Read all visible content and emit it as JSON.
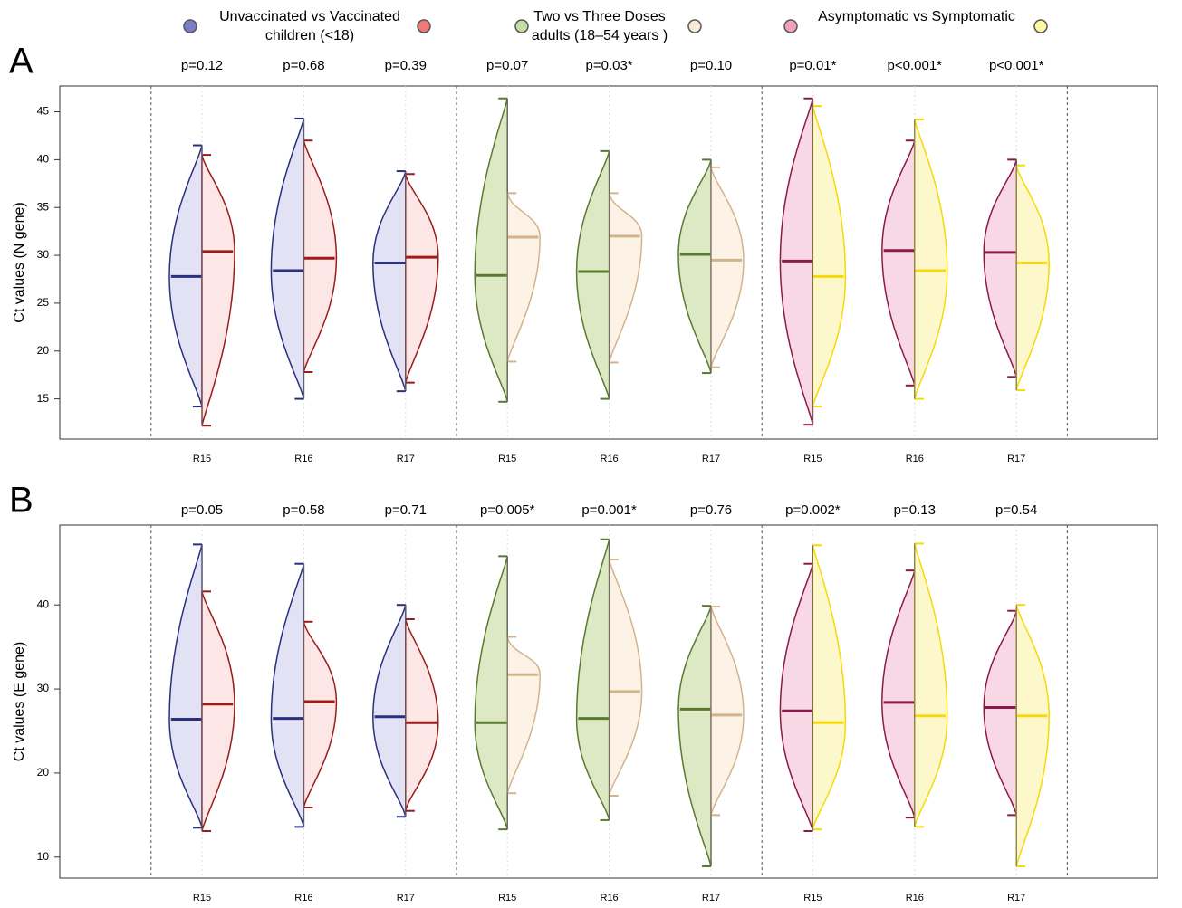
{
  "legend": {
    "items": [
      {
        "label": [
          "Unvaccinated vs Vaccinated",
          "children (<18)"
        ],
        "colors": [
          "#7b7fc8",
          "#f07878"
        ],
        "line_colors": [
          "#2b2f80",
          "#9b1b1b"
        ],
        "fill_colors": [
          "#e2e2f4",
          "#fde6e6"
        ]
      },
      {
        "label": [
          "Two vs Three Doses",
          "adults (18–54 years )"
        ],
        "colors": [
          "#c6dca0",
          "#f8e8d4"
        ],
        "line_colors": [
          "#5a7a30",
          "#d2b48c"
        ],
        "fill_colors": [
          "#dce9c4",
          "#fcf2e6"
        ]
      },
      {
        "label": [
          "Asymptomatic vs Symptomatic"
        ],
        "colors": [
          "#f2a0c0",
          "#fdf7a0"
        ],
        "line_colors": [
          "#8b1a4a",
          "#f5d90a"
        ],
        "fill_colors": [
          "#f9d8e6",
          "#fdf8cc"
        ]
      }
    ]
  },
  "chart_data": [
    {
      "type": "violin",
      "label": "A",
      "y_label": "Ct values (N gene)",
      "ylim": [
        10.8,
        47.7
      ],
      "yticks": [
        15,
        20,
        25,
        30,
        35,
        40,
        45
      ],
      "groups": [
        {
          "categories": [
            "R15",
            "R16",
            "R17"
          ],
          "p_values": [
            "p=0.12",
            "p=0.68",
            "p=0.39"
          ],
          "left": {
            "min": [
              14.2,
              15,
              15.8
            ],
            "median": [
              27.8,
              28.4,
              29.2
            ],
            "max": [
              41.5,
              44.3,
              38.8
            ]
          },
          "right": {
            "min": [
              12.2,
              17.8,
              16.7
            ],
            "median": [
              30.4,
              29.7,
              29.8
            ],
            "max": [
              40.5,
              42,
              38.5
            ]
          }
        },
        {
          "categories": [
            "R15",
            "R16",
            "R17"
          ],
          "p_values": [
            "p=0.07",
            "p=0.03*",
            "p=0.10"
          ],
          "left": {
            "min": [
              14.7,
              15,
              17.7
            ],
            "median": [
              27.9,
              28.3,
              30.1
            ],
            "max": [
              46.4,
              40.9,
              40
            ]
          },
          "right": {
            "min": [
              18.9,
              18.8,
              18.3
            ],
            "median": [
              31.9,
              32,
              29.5
            ],
            "max": [
              36.5,
              36.5,
              39.2
            ]
          }
        },
        {
          "categories": [
            "R15",
            "R16",
            "R17"
          ],
          "p_values": [
            "p=0.01*",
            "p<0.001*",
            "p<0.001*"
          ],
          "left": {
            "min": [
              12.3,
              16.4,
              17.3
            ],
            "median": [
              29.4,
              30.5,
              30.3
            ],
            "max": [
              46.4,
              42,
              40
            ]
          },
          "right": {
            "min": [
              14.2,
              15,
              15.9
            ],
            "median": [
              27.8,
              28.4,
              29.2
            ],
            "max": [
              45.6,
              44.2,
              39.4
            ]
          }
        }
      ]
    },
    {
      "type": "violin",
      "label": "B",
      "y_label": "Ct values (E gene)",
      "ylim": [
        7.5,
        49.5
      ],
      "yticks": [
        10,
        20,
        30,
        40
      ],
      "groups": [
        {
          "categories": [
            "R15",
            "R16",
            "R17"
          ],
          "p_values": [
            "p=0.05",
            "p=0.58",
            "p=0.71"
          ],
          "left": {
            "min": [
              13.5,
              13.6,
              14.8
            ],
            "median": [
              26.4,
              26.5,
              26.7
            ],
            "max": [
              47.2,
              44.9,
              40
            ]
          },
          "right": {
            "min": [
              13.1,
              15.9,
              15.5
            ],
            "median": [
              28.2,
              28.5,
              26
            ],
            "max": [
              41.6,
              38,
              38.3
            ]
          }
        },
        {
          "categories": [
            "R15",
            "R16",
            "R17"
          ],
          "p_values": [
            "p=0.005*",
            "p=0.001*",
            "p=0.76"
          ],
          "left": {
            "min": [
              13.3,
              14.4,
              8.9
            ],
            "median": [
              26,
              26.5,
              27.6
            ],
            "max": [
              45.8,
              47.8,
              39.9
            ]
          },
          "right": {
            "min": [
              17.6,
              17.3,
              15
            ],
            "median": [
              31.7,
              29.7,
              26.9
            ],
            "max": [
              36.2,
              45.4,
              39.8
            ]
          }
        },
        {
          "categories": [
            "R15",
            "R16",
            "R17"
          ],
          "p_values": [
            "p=0.002*",
            "p=0.13",
            "p=0.54"
          ],
          "left": {
            "min": [
              13.1,
              14.7,
              15
            ],
            "median": [
              27.4,
              28.4,
              27.8
            ],
            "max": [
              44.9,
              44.1,
              39.3
            ]
          },
          "right": {
            "min": [
              13.3,
              13.6,
              8.9
            ],
            "median": [
              26,
              26.8,
              26.8
            ],
            "max": [
              47.1,
              47.3,
              40
            ]
          }
        }
      ]
    }
  ]
}
